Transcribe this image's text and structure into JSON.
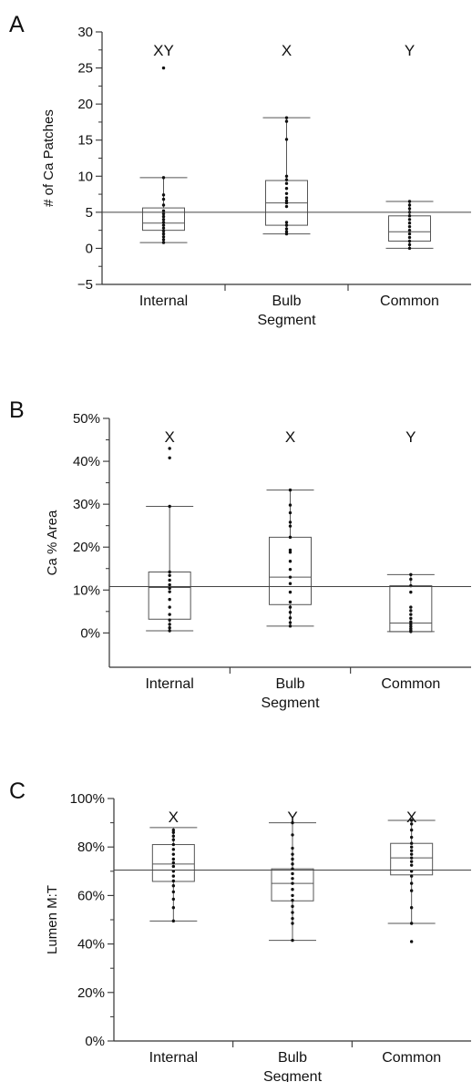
{
  "chart_data": [
    {
      "type": "box",
      "panel_letter": "A",
      "ylabel": "# of Ca Patches",
      "xlabel": "Segment",
      "y_ticks": [
        "30",
        "25",
        "20",
        "15",
        "10",
        "5",
        "0",
        "−5"
      ],
      "ylim": [
        -5,
        30
      ],
      "reference_line": 5,
      "grid": false,
      "categories": [
        "Internal",
        "Bulb",
        "Common"
      ],
      "significance": [
        "XY",
        "X",
        "Y"
      ],
      "boxes": [
        {
          "min": 0.8,
          "q1": 2.5,
          "median": 3.5,
          "q3": 5.6,
          "max": 9.8
        },
        {
          "min": 2.0,
          "q1": 3.2,
          "median": 6.3,
          "q3": 9.4,
          "max": 18.1
        },
        {
          "min": 0.0,
          "q1": 1.0,
          "median": 2.3,
          "q3": 4.5,
          "max": 6.5
        }
      ],
      "points": [
        [
          0.8,
          1.2,
          1.6,
          2.0,
          2.4,
          2.8,
          3.2,
          3.6,
          4.0,
          4.4,
          4.8,
          5.2,
          6.0,
          6.8,
          7.4,
          9.8,
          25.0
        ],
        [
          2.0,
          2.3,
          2.7,
          3.2,
          3.6,
          5.8,
          6.3,
          6.6,
          7.0,
          7.6,
          8.3,
          9.0,
          9.5,
          10.0,
          15.1,
          17.6,
          18.1
        ],
        [
          0.0,
          0.5,
          1.0,
          1.5,
          2.0,
          2.5,
          3.0,
          3.5,
          4.0,
          4.5,
          5.0,
          5.5,
          6.0,
          6.5
        ]
      ]
    },
    {
      "type": "box",
      "panel_letter": "B",
      "ylabel": "Ca % Area",
      "xlabel": "Segment",
      "y_ticks": [
        "50%",
        "40%",
        "30%",
        "20%",
        "10%",
        "0%"
      ],
      "ylim": [
        -8,
        50
      ],
      "reference_line": 10.8,
      "grid": false,
      "categories": [
        "Internal",
        "Bulb",
        "Common"
      ],
      "significance": [
        "X",
        "X",
        "Y"
      ],
      "boxes": [
        {
          "min": 0.5,
          "q1": 3.2,
          "median": 10.6,
          "q3": 14.2,
          "max": 29.5
        },
        {
          "min": 1.6,
          "q1": 6.6,
          "median": 13.0,
          "q3": 22.3,
          "max": 33.3
        },
        {
          "min": 0.3,
          "q1": 0.3,
          "median": 2.3,
          "q3": 11.0,
          "max": 13.6
        }
      ],
      "points": [
        [
          0.5,
          1.2,
          2.0,
          3.0,
          4.3,
          6.0,
          7.8,
          9.6,
          10.4,
          11.2,
          12.3,
          13.4,
          14.2,
          29.5,
          40.8,
          43.0
        ],
        [
          1.6,
          2.4,
          3.5,
          4.8,
          6.0,
          7.2,
          9.5,
          11.5,
          13.0,
          14.8,
          16.7,
          18.8,
          19.3,
          22.3,
          24.9,
          25.8,
          28.0,
          29.8,
          33.3
        ],
        [
          0.3,
          0.6,
          1.0,
          1.5,
          2.0,
          2.6,
          3.4,
          4.3,
          5.2,
          6.0,
          9.5,
          11.0,
          12.5,
          13.6
        ]
      ]
    },
    {
      "type": "box",
      "panel_letter": "C",
      "ylabel": "Lumen M:T",
      "xlabel": "Segment",
      "y_ticks": [
        "100%",
        "80%",
        "60%",
        "40%",
        "20%",
        "0%"
      ],
      "ylim": [
        0,
        100
      ],
      "reference_line": 70.5,
      "grid": false,
      "categories": [
        "Internal",
        "Bulb",
        "Common"
      ],
      "significance": [
        "X",
        "Y",
        "X"
      ],
      "boxes": [
        {
          "min": 49.5,
          "q1": 65.8,
          "median": 73.0,
          "q3": 81.0,
          "max": 88.0
        },
        {
          "min": 41.5,
          "q1": 57.8,
          "median": 65.0,
          "q3": 71.0,
          "max": 90.0
        },
        {
          "min": 48.5,
          "q1": 68.5,
          "median": 75.5,
          "q3": 81.5,
          "max": 91.0
        }
      ],
      "points": [
        [
          49.5,
          55.0,
          58.5,
          61.5,
          64.0,
          66.0,
          68.0,
          70.0,
          72.0,
          73.5,
          75.0,
          77.0,
          79.0,
          81.0,
          83.0,
          84.5,
          86.0,
          87.0
        ],
        [
          41.5,
          48.5,
          50.5,
          53.0,
          55.5,
          58.0,
          60.0,
          62.5,
          65.0,
          67.0,
          69.0,
          71.0,
          73.0,
          75.0,
          77.0,
          79.5,
          85.0,
          90.0
        ],
        [
          41.0,
          48.5,
          55.0,
          62.0,
          65.0,
          68.0,
          70.0,
          72.5,
          74.0,
          75.5,
          77.0,
          78.5,
          80.0,
          81.5,
          84.0,
          87.0,
          89.5,
          91.0
        ]
      ]
    }
  ]
}
